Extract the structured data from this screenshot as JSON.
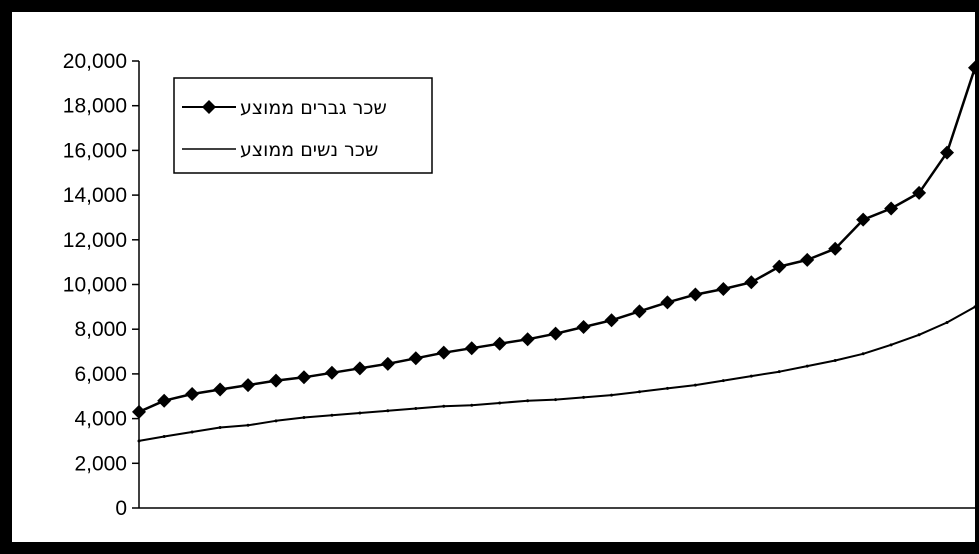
{
  "chart_data": {
    "type": "line",
    "title": "",
    "xlabel": "",
    "ylabel": "",
    "ylim": [
      0,
      20000
    ],
    "y_ticks": [
      "0",
      "2,000",
      "4,000",
      "6,000",
      "8,000",
      "10,000",
      "12,000",
      "14,000",
      "16,000",
      "18,000",
      "20,000"
    ],
    "y_tick_values": [
      0,
      2000,
      4000,
      6000,
      8000,
      10000,
      12000,
      14000,
      16000,
      18000,
      20000
    ],
    "grid": false,
    "legend_placement": "top-left",
    "x": [
      1,
      10,
      20,
      30,
      40,
      50,
      60,
      70,
      80,
      90,
      100,
      110,
      120,
      130,
      140,
      150,
      160,
      170,
      180,
      190,
      200,
      210,
      220,
      230,
      240,
      250,
      260,
      270,
      280,
      290,
      300
    ],
    "series": [
      {
        "name": "שכר גברים ממוצע",
        "marker": "diamond",
        "color": "#000000",
        "values": [
          4300,
          4800,
          5100,
          5300,
          5500,
          5700,
          5850,
          6050,
          6250,
          6450,
          6700,
          6950,
          7150,
          7350,
          7550,
          7800,
          8100,
          8400,
          8800,
          9200,
          9550,
          9800,
          10100,
          10800,
          11100,
          11600,
          12900,
          13400,
          14100,
          15900,
          19700
        ]
      },
      {
        "name": "שכר נשים ממוצע",
        "marker": "none",
        "color": "#000000",
        "values": [
          3000,
          3200,
          3400,
          3600,
          3700,
          3900,
          4050,
          4150,
          4250,
          4350,
          4450,
          4550,
          4600,
          4700,
          4800,
          4850,
          4950,
          5050,
          5200,
          5350,
          5500,
          5700,
          5900,
          6100,
          6350,
          6600,
          6900,
          7300,
          7750,
          8300,
          9000
        ]
      }
    ]
  }
}
